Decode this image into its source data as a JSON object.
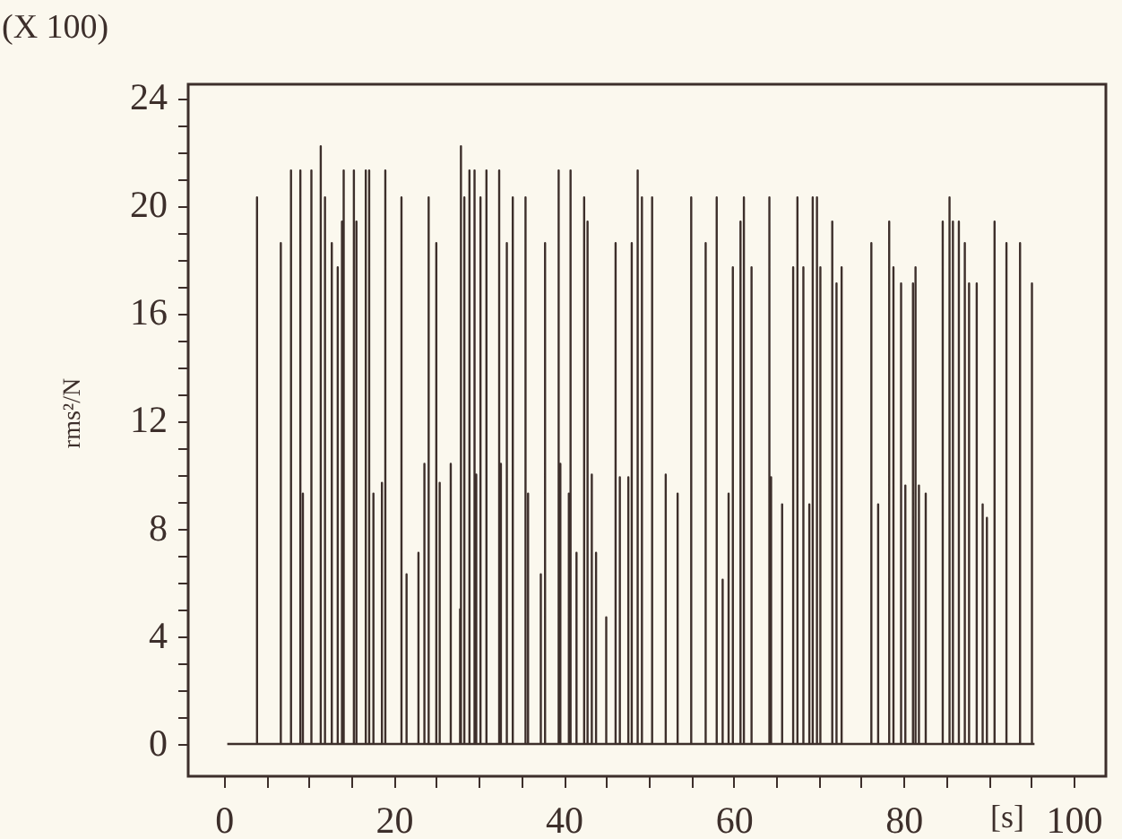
{
  "chart_data": {
    "type": "line",
    "annotations": [
      "(X 100)"
    ],
    "xlabel": "[s]",
    "ylabel": "rms²/N",
    "x": [
      0.4,
      3.9,
      3.9,
      3.9,
      6.7,
      6.7,
      6.7,
      7.9,
      7.9,
      7.9,
      9.0,
      9.0,
      9.0,
      9.3,
      9.3,
      9.3,
      10.3,
      10.3,
      10.3,
      11.4,
      11.4,
      11.4,
      11.9,
      11.9,
      11.9,
      12.7,
      12.7,
      12.7,
      13.4,
      13.4,
      13.4,
      13.9,
      13.9,
      13.9,
      14.1,
      14.1,
      14.1,
      15.3,
      15.3,
      15.3,
      15.6,
      15.6,
      15.6,
      16.7,
      16.7,
      16.7,
      17.1,
      17.1,
      17.1,
      17.6,
      17.6,
      17.6,
      18.6,
      18.6,
      18.6,
      19.0,
      19.0,
      19.0,
      20.9,
      20.9,
      20.9,
      21.5,
      21.5,
      21.5,
      22.9,
      22.9,
      22.9,
      23.6,
      23.6,
      23.6,
      24.1,
      24.1,
      24.1,
      25.0,
      25.0,
      25.0,
      25.4,
      25.4,
      25.4,
      26.7,
      26.7,
      26.7,
      27.8,
      27.8,
      27.8,
      27.9,
      27.9,
      27.9,
      28.3,
      28.3,
      28.3,
      28.9,
      28.9,
      28.9,
      29.5,
      29.5,
      29.5,
      29.7,
      29.7,
      29.7,
      30.2,
      30.2,
      30.2,
      30.9,
      30.9,
      30.9,
      32.4,
      32.4,
      32.4,
      32.6,
      32.6,
      32.6,
      33.3,
      33.3,
      33.3,
      34.0,
      34.0,
      34.0,
      35.5,
      35.5,
      35.5,
      35.8,
      35.8,
      35.8,
      37.3,
      37.3,
      37.3,
      37.8,
      37.8,
      37.8,
      39.4,
      39.4,
      39.4,
      39.6,
      39.6,
      39.6,
      40.6,
      40.6,
      40.6,
      40.8,
      40.8,
      40.8,
      41.5,
      41.5,
      41.5,
      42.4,
      42.4,
      42.4,
      42.8,
      42.8,
      42.8,
      43.3,
      43.3,
      43.3,
      43.8,
      43.8,
      43.8,
      45.0,
      45.0,
      45.0,
      46.1,
      46.1,
      46.1,
      46.6,
      46.6,
      46.6,
      47.6,
      47.6,
      47.6,
      48.0,
      48.0,
      48.0,
      48.7,
      48.7,
      48.7,
      49.2,
      49.2,
      49.2,
      50.4,
      50.4,
      50.4,
      52.0,
      52.0,
      52.0,
      53.4,
      53.4,
      53.4,
      55.0,
      55.0,
      55.0,
      56.7,
      56.7,
      56.7,
      58.0,
      58.0,
      58.0,
      58.7,
      58.7,
      58.7,
      59.4,
      59.4,
      59.4,
      59.9,
      59.9,
      59.9,
      60.8,
      60.8,
      60.8,
      61.2,
      61.2,
      61.2,
      62.1,
      62.1,
      62.1,
      64.2,
      64.2,
      64.2,
      64.4,
      64.4,
      64.4,
      65.7,
      65.7,
      65.7,
      67.0,
      67.0,
      67.0,
      67.5,
      67.5,
      67.5,
      68.2,
      68.2,
      68.2,
      68.9,
      68.9,
      68.9,
      69.3,
      69.3,
      69.3,
      69.8,
      69.8,
      69.8,
      70.2,
      70.2,
      70.2,
      71.6,
      71.6,
      71.6,
      72.1,
      72.1,
      72.1,
      72.7,
      72.7,
      72.7,
      76.2,
      76.2,
      76.2,
      77.0,
      77.0,
      77.0,
      78.3,
      78.3,
      78.3,
      78.8,
      78.8,
      78.8,
      79.7,
      79.7,
      79.7,
      80.2,
      80.2,
      80.2,
      81.1,
      81.1,
      81.1,
      81.4,
      81.4,
      81.4,
      81.8,
      81.8,
      81.8,
      82.6,
      82.6,
      82.6,
      84.6,
      84.6,
      84.6,
      85.4,
      85.4,
      85.4,
      85.8,
      85.8,
      85.8,
      86.5,
      86.5,
      86.5,
      87.2,
      87.2,
      87.2,
      87.7,
      87.7,
      87.7,
      88.6,
      88.6,
      88.6,
      89.3,
      89.3,
      89.3,
      89.8,
      89.8,
      89.8,
      90.7,
      90.7,
      90.7,
      92.1,
      92.1,
      92.1,
      93.7,
      93.7,
      93.7,
      95.1,
      95.1,
      95.1,
      95.4
    ],
    "series": [
      {
        "color": "#3d2f2b",
        "values": [
          0,
          0,
          20.3,
          0,
          0,
          18.6,
          0,
          0,
          21.3,
          0,
          0,
          21.3,
          0,
          0,
          9.3,
          0,
          0,
          21.3,
          0,
          0,
          22.2,
          0,
          0,
          20.3,
          0,
          0,
          18.6,
          0,
          0,
          17.7,
          0,
          0,
          19.4,
          0,
          0,
          21.3,
          0,
          0,
          21.3,
          0,
          0,
          19.4,
          0,
          0,
          21.3,
          0,
          0,
          21.3,
          0,
          0,
          9.3,
          0,
          0,
          9.7,
          0,
          0,
          21.3,
          0,
          0,
          20.3,
          0,
          0,
          6.3,
          0,
          0,
          7.1,
          0,
          0,
          10.4,
          0,
          0,
          20.3,
          0,
          0,
          18.6,
          0,
          0,
          9.7,
          0,
          0,
          10.4,
          0,
          0,
          5.0,
          0,
          0,
          22.2,
          0,
          0,
          20.3,
          0,
          0,
          21.3,
          0,
          0,
          21.3,
          0,
          0,
          10.0,
          0,
          0,
          20.3,
          0,
          0,
          21.3,
          0,
          0,
          21.3,
          0,
          0,
          10.4,
          0,
          0,
          18.6,
          0,
          0,
          20.3,
          0,
          0,
          20.3,
          0,
          0,
          9.3,
          0,
          0,
          6.3,
          0,
          0,
          18.6,
          0,
          0,
          21.3,
          0,
          0,
          10.4,
          0,
          0,
          9.3,
          0,
          0,
          21.3,
          0,
          0,
          7.1,
          0,
          0,
          20.3,
          0,
          0,
          19.4,
          0,
          0,
          10.0,
          0,
          0,
          7.1,
          0,
          0,
          4.7,
          0,
          0,
          18.6,
          0,
          0,
          9.9,
          0,
          0,
          9.9,
          0,
          0,
          18.6,
          0,
          0,
          21.3,
          0,
          0,
          20.3,
          0,
          0,
          20.3,
          0,
          0,
          10.0,
          0,
          0,
          9.3,
          0,
          0,
          20.3,
          0,
          0,
          18.6,
          0,
          0,
          20.3,
          0,
          0,
          6.1,
          0,
          0,
          9.3,
          0,
          0,
          17.7,
          0,
          0,
          19.4,
          0,
          0,
          20.3,
          0,
          0,
          17.7,
          0,
          0,
          20.3,
          0,
          0,
          9.9,
          0,
          0,
          8.9,
          0,
          0,
          17.7,
          0,
          0,
          20.3,
          0,
          0,
          17.7,
          0,
          0,
          8.9,
          0,
          0,
          20.3,
          0,
          0,
          20.3,
          0,
          0,
          17.7,
          0,
          0,
          19.4,
          0,
          0,
          17.1,
          0,
          0,
          17.7,
          0,
          0,
          18.6,
          0,
          0,
          8.9,
          0,
          0,
          19.4,
          0,
          0,
          17.7,
          0,
          0,
          17.1,
          0,
          0,
          9.6,
          0,
          0,
          17.1,
          0,
          0,
          17.7,
          0,
          0,
          9.6,
          0,
          0,
          9.3,
          0,
          0,
          19.4,
          0,
          0,
          20.3,
          0,
          0,
          19.4,
          0,
          0,
          19.4,
          0,
          0,
          18.6,
          0,
          0,
          17.1,
          0,
          0,
          17.1,
          0,
          0,
          8.9,
          0,
          0,
          8.4,
          0,
          0,
          19.4,
          0,
          0,
          18.6,
          0,
          0,
          18.6,
          0,
          0,
          17.1,
          0,
          0
        ]
      }
    ],
    "xlim": [
      -4.2,
      103.8
    ],
    "ylim": [
      -1.2,
      24.5
    ],
    "xticks": [
      0,
      {
        "value": 5,
        "label": null
      },
      {
        "value": 10,
        "label": null
      },
      {
        "value": 15,
        "label": null
      },
      20,
      {
        "value": 25,
        "label": null
      },
      {
        "value": 30,
        "label": null
      },
      {
        "value": 35,
        "label": null
      },
      40,
      {
        "value": 45,
        "label": null
      },
      {
        "value": 50,
        "label": null
      },
      {
        "value": 55,
        "label": null
      },
      60,
      {
        "value": 65,
        "label": null
      },
      {
        "value": 70,
        "label": null
      },
      {
        "value": 75,
        "label": null
      },
      80,
      {
        "value": 85,
        "label": null
      },
      {
        "value": 90,
        "label": null
      },
      {
        "value": 95,
        "label": null
      },
      100
    ],
    "yticks": [
      0,
      {
        "value": 1,
        "label": null
      },
      {
        "value": 2,
        "label": null
      },
      {
        "value": 3,
        "label": null
      },
      4,
      {
        "value": 5,
        "label": null
      },
      {
        "value": 6,
        "label": null
      },
      {
        "value": 7,
        "label": null
      },
      8,
      {
        "value": 9,
        "label": null
      },
      {
        "value": 10,
        "label": null
      },
      {
        "value": 11,
        "label": null
      },
      12,
      {
        "value": 13,
        "label": null
      },
      {
        "value": 14,
        "label": null
      },
      {
        "value": 15,
        "label": null
      },
      16,
      {
        "value": 17,
        "label": null
      },
      {
        "value": 18,
        "label": null
      },
      {
        "value": 19,
        "label": null
      },
      20,
      {
        "value": 21,
        "label": null
      },
      {
        "value": 22,
        "label": null
      },
      {
        "value": 23,
        "label": null
      },
      24
    ],
    "grid": false
  }
}
